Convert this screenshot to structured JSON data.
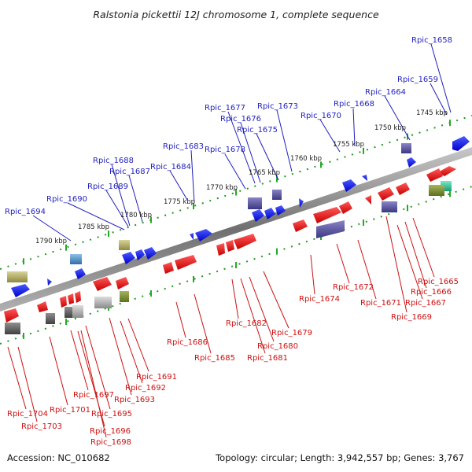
{
  "title": "Ralstonia pickettii 12J chromosome 1, complete sequence",
  "footer": {
    "accession": "Accession: NC_010682",
    "summary": "Topology: circular; Length: 3,942,557 bp; Genes: 3,767"
  },
  "colors": {
    "forward_gene": "#1010ee",
    "reverse_gene": "#ee1010",
    "forward_label": "#1f1fbf",
    "reverse_label": "#cc1010",
    "backbone": "#888888",
    "tick": "#22aa22"
  },
  "scale_ticks": [
    "1745 kbp",
    "1750 kbp",
    "1755 kbp",
    "1760 kbp",
    "1765 kbp",
    "1770 kbp",
    "1775 kbp",
    "1780 kbp",
    "1785 kbp",
    "1790 kbp"
  ],
  "forward_labels": [
    "Rpic_1658",
    "Rpic_1659",
    "Rpic_1664",
    "Rpic_1668",
    "Rpic_1670",
    "Rpic_1673",
    "Rpic_1677",
    "Rpic_1676",
    "Rpic_1675",
    "Rpic_1678",
    "Rpic_1683",
    "Rpic_1684",
    "Rpic_1688",
    "Rpic_1687",
    "Rpic_1689",
    "Rpic_1690",
    "Rpic_1694"
  ],
  "reverse_labels": [
    "Rpic_1665",
    "Rpic_1666",
    "Rpic_1667",
    "Rpic_1669",
    "Rpic_1671",
    "Rpic_1672",
    "Rpic_1674",
    "Rpic_1679",
    "Rpic_1680",
    "Rpic_1681",
    "Rpic_1682",
    "Rpic_1685",
    "Rpic_1686",
    "Rpic_1691",
    "Rpic_1692",
    "Rpic_1693",
    "Rpic_1695",
    "Rpic_1696",
    "Rpic_1697",
    "Rpic_1698",
    "Rpic_1701",
    "Rpic_1703",
    "Rpic_1704"
  ]
}
